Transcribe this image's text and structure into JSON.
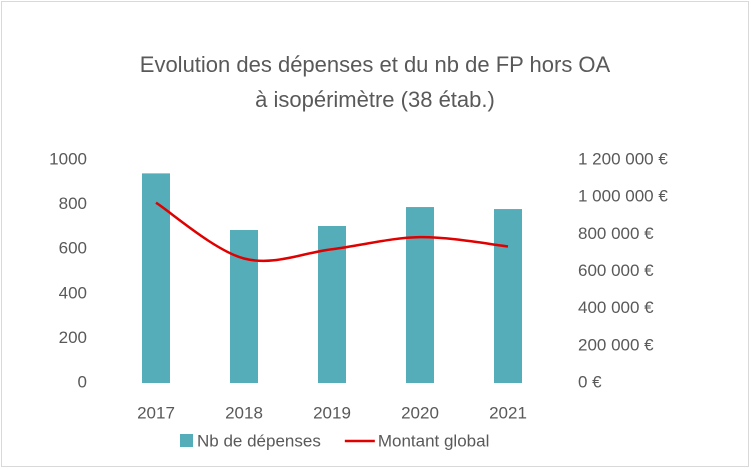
{
  "chart_data": {
    "type": "bar-line",
    "title": [
      "Evolution des dépenses et du nb de FP hors OA",
      "à isopérimètre (38 étab.)"
    ],
    "categories": [
      "2017",
      "2018",
      "2019",
      "2020",
      "2021"
    ],
    "series": [
      {
        "name": "Nb de dépenses",
        "color": "#54adb8",
        "type": "bar",
        "values": [
          940,
          686,
          704,
          789,
          780
        ]
      },
      {
        "name": "Montant global",
        "color": "#e00000",
        "type": "line",
        "axis": "y2",
        "smooth": true,
        "values": [
          970000,
          670000,
          720000,
          785000,
          735000
        ]
      }
    ],
    "ylim": [
      0,
      1000
    ],
    "yticks": [
      0,
      200,
      400,
      600,
      800,
      1000
    ],
    "y2lim": [
      0,
      1200000
    ],
    "y2ticks": [
      {
        "value": 0,
        "label": "0 €"
      },
      {
        "value": 200000,
        "label": "200 000 €"
      },
      {
        "value": 400000,
        "label": "400 000 €"
      },
      {
        "value": 600000,
        "label": "600 000 €"
      },
      {
        "value": 800000,
        "label": "800 000 €"
      },
      {
        "value": 1000000,
        "label": "1 000 000 €"
      },
      {
        "value": 1200000,
        "label": "1 200 000 €"
      }
    ],
    "grid": false,
    "legend": "bottom"
  }
}
